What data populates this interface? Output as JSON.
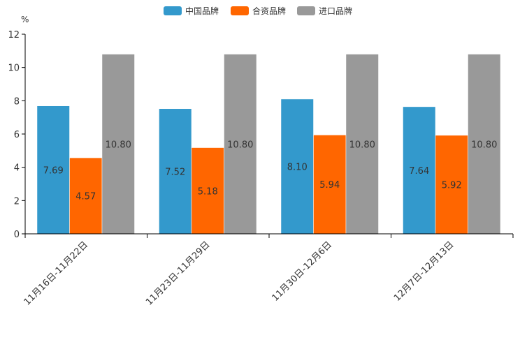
{
  "chart_data": {
    "type": "bar",
    "yunit": "%",
    "ylim": [
      0,
      12
    ],
    "yticks": [
      0,
      2,
      4,
      6,
      8,
      10,
      12
    ],
    "categories": [
      "11月16日-11月22日",
      "11月23日-11月29日",
      "11月30日-12月6日",
      "12月7日-12月13日"
    ],
    "series": [
      {
        "name": "中国品牌",
        "color": "#3399cc",
        "values": [
          7.69,
          7.52,
          8.1,
          7.64
        ],
        "labels": [
          "7.69",
          "7.52",
          "8.10",
          "7.64"
        ]
      },
      {
        "name": "合资品牌",
        "color": "#ff6600",
        "values": [
          4.57,
          5.18,
          5.94,
          5.92
        ],
        "labels": [
          "4.57",
          "5.18",
          "5.94",
          "5.92"
        ]
      },
      {
        "name": "进口品牌",
        "color": "#999999",
        "values": [
          10.8,
          10.8,
          10.8,
          10.8
        ],
        "labels": [
          "10.80",
          "10.80",
          "10.80",
          "10.80"
        ]
      }
    ],
    "legend_position": "top-center",
    "grid": false
  }
}
